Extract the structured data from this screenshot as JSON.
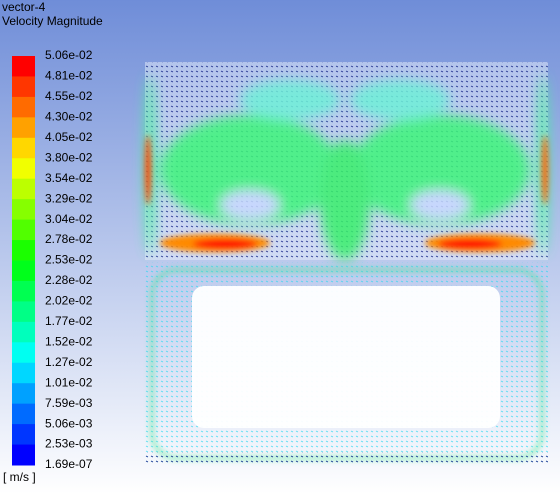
{
  "header": {
    "title": "vector-4",
    "subtitle": "Velocity Magnitude"
  },
  "colorbar": {
    "labels": [
      "5.06e-02",
      "4.81e-02",
      "4.55e-02",
      "4.30e-02",
      "4.05e-02",
      "3.80e-02",
      "3.54e-02",
      "3.29e-02",
      "3.04e-02",
      "2.78e-02",
      "2.53e-02",
      "2.28e-02",
      "2.02e-02",
      "1.77e-02",
      "1.52e-02",
      "1.27e-02",
      "1.01e-02",
      "7.59e-03",
      "5.06e-03",
      "2.53e-03",
      "1.69e-07"
    ],
    "colors": [
      "#ff0000",
      "#ff3600",
      "#ff6b00",
      "#ffa100",
      "#ffd700",
      "#f1ff00",
      "#bcff00",
      "#86ff00",
      "#51ff00",
      "#1bff00",
      "#00ff1b",
      "#00ff51",
      "#00ff86",
      "#00ffbc",
      "#00fff1",
      "#00d7ff",
      "#00a1ff",
      "#006bff",
      "#0036ff",
      "#0000ff"
    ],
    "unit": "[ m/s ]"
  }
}
